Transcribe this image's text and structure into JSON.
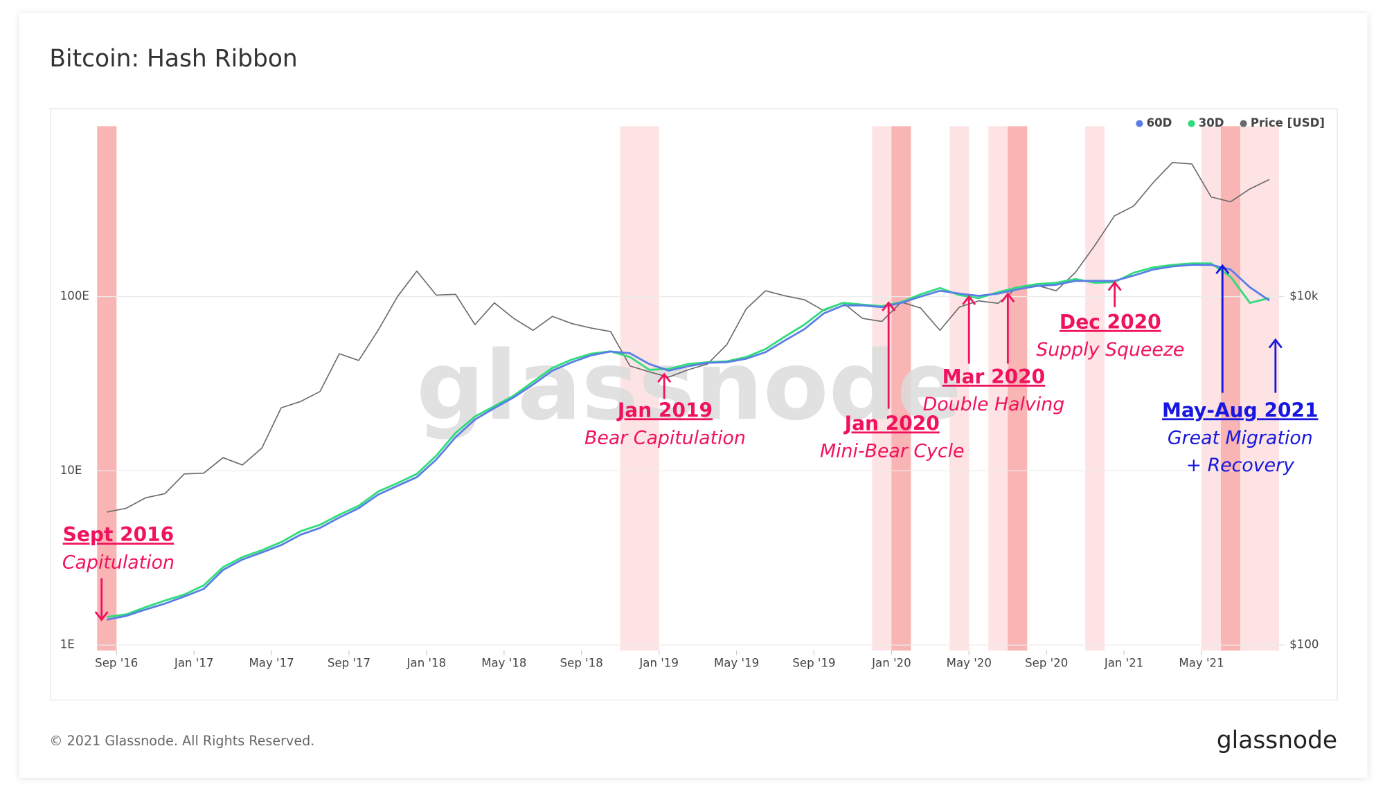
{
  "title_block": {
    "copyright": "© 2021 Glassnode. All Rights Reserved.",
    "logo": "glassnode",
    "watermark": "glassnode"
  },
  "chart_data": {
    "type": "line",
    "title": "Bitcoin: Hash Ribbon",
    "x": [
      "2016-08",
      "2016-09",
      "2016-10",
      "2016-11",
      "2016-12",
      "2017-01",
      "2017-02",
      "2017-03",
      "2017-04",
      "2017-05",
      "2017-06",
      "2017-07",
      "2017-08",
      "2017-09",
      "2017-10",
      "2017-11",
      "2017-12",
      "2018-01",
      "2018-02",
      "2018-03",
      "2018-04",
      "2018-05",
      "2018-06",
      "2018-07",
      "2018-08",
      "2018-09",
      "2018-10",
      "2018-11",
      "2018-12",
      "2019-01",
      "2019-02",
      "2019-03",
      "2019-04",
      "2019-05",
      "2019-06",
      "2019-07",
      "2019-08",
      "2019-09",
      "2019-10",
      "2019-11",
      "2019-12",
      "2020-01",
      "2020-02",
      "2020-03",
      "2020-04",
      "2020-05",
      "2020-06",
      "2020-07",
      "2020-08",
      "2020-09",
      "2020-10",
      "2020-11",
      "2020-12",
      "2021-01",
      "2021-02",
      "2021-03",
      "2021-04",
      "2021-05",
      "2021-06",
      "2021-07",
      "2021-08"
    ],
    "xlim": [
      "2016-08",
      "2021-08"
    ],
    "xticks": [
      {
        "value": "2016-09",
        "label": "Sep '16"
      },
      {
        "value": "2017-01",
        "label": "Jan '17"
      },
      {
        "value": "2017-05",
        "label": "May '17"
      },
      {
        "value": "2017-09",
        "label": "Sep '17"
      },
      {
        "value": "2018-01",
        "label": "Jan '18"
      },
      {
        "value": "2018-05",
        "label": "May '18"
      },
      {
        "value": "2018-09",
        "label": "Sep '18"
      },
      {
        "value": "2019-01",
        "label": "Jan '19"
      },
      {
        "value": "2019-05",
        "label": "May '19"
      },
      {
        "value": "2019-09",
        "label": "Sep '19"
      },
      {
        "value": "2020-01",
        "label": "Jan '20"
      },
      {
        "value": "2020-05",
        "label": "May '20"
      },
      {
        "value": "2020-09",
        "label": "Sep '20"
      },
      {
        "value": "2021-01",
        "label": "Jan '21"
      },
      {
        "value": "2021-05",
        "label": "May '21"
      }
    ],
    "ylog": true,
    "ylim": [
      0.93,
      950
    ],
    "yticks": [
      {
        "value": 1,
        "label": "1E"
      },
      {
        "value": 10,
        "label": "10E"
      },
      {
        "value": 100,
        "label": "100E"
      }
    ],
    "y2log": true,
    "y2lim": [
      93,
      95000
    ],
    "y2ticks": [
      {
        "value": 100,
        "label": "$100"
      },
      {
        "value": 10000,
        "label": "$10k"
      }
    ],
    "grid": true,
    "legend": "top-right",
    "series": [
      {
        "name": "60D",
        "color": "#5a7ee6",
        "values": [
          1.4,
          1.47,
          1.6,
          1.73,
          1.9,
          2.1,
          2.7,
          3.1,
          3.4,
          3.75,
          4.3,
          4.7,
          5.4,
          6.1,
          7.3,
          8.2,
          9.2,
          11.6,
          15.6,
          19.7,
          22.9,
          26.4,
          31.3,
          37.6,
          42,
          46,
          48.4,
          47.3,
          41,
          37.6,
          39.8,
          41.7,
          42,
          44,
          48,
          56,
          65,
          80,
          89,
          89,
          87,
          92,
          100,
          108,
          104,
          101,
          104,
          110,
          115,
          117,
          123,
          123,
          123,
          132,
          143,
          149,
          152,
          152,
          143,
          113,
          95
        ]
      },
      {
        "name": "30D",
        "color": "#2fdc7a",
        "values": [
          1.45,
          1.5,
          1.65,
          1.8,
          1.95,
          2.2,
          2.8,
          3.2,
          3.5,
          3.9,
          4.5,
          4.9,
          5.6,
          6.3,
          7.6,
          8.5,
          9.6,
          12.2,
          16.5,
          20.5,
          23.5,
          27,
          32.5,
          39,
          43.5,
          47,
          48.5,
          45,
          38,
          38.5,
          41,
          42,
          42.5,
          45,
          50,
          59,
          69,
          84,
          92,
          90,
          88,
          93,
          103,
          112,
          102,
          98,
          106,
          113,
          118,
          120,
          126,
          120,
          121,
          137,
          147,
          152,
          155,
          155,
          130,
          92,
          98
        ]
      },
      {
        "name": "Price [USD]",
        "color": "#6b6b6b",
        "axis": "y2",
        "values": [
          580,
          610,
          700,
          740,
          960,
          970,
          1190,
          1080,
          1350,
          2300,
          2500,
          2850,
          4700,
          4300,
          6400,
          10000,
          14000,
          10200,
          10300,
          6900,
          9200,
          7500,
          6400,
          7700,
          7000,
          6600,
          6300,
          4000,
          3700,
          3450,
          3800,
          4100,
          5300,
          8500,
          10800,
          10100,
          9600,
          8300,
          9200,
          7500,
          7200,
          9300,
          8600,
          6400,
          8700,
          9450,
          9150,
          11300,
          11600,
          10800,
          13800,
          19700,
          29000,
          33100,
          45000,
          58800,
          57700,
          37300,
          35000,
          41500,
          47000
        ]
      }
    ],
    "bands": [
      [
        "2016-08",
        "2016-08"
      ],
      [
        "2018-11",
        "2018-12"
      ],
      [
        "2019-12",
        "2020-01"
      ],
      [
        "2020-04",
        "2020-04"
      ],
      [
        "2020-06",
        "2020-07"
      ],
      [
        "2020-11",
        "2020-11"
      ],
      [
        "2021-05",
        "2021-08"
      ]
    ],
    "band_color": "#fde3e3",
    "strong_bands": [
      [
        "2016-08",
        "2016-08"
      ],
      [
        "2020-01",
        "2020-01"
      ],
      [
        "2020-07",
        "2020-07"
      ],
      [
        "2021-06",
        "2021-06"
      ]
    ],
    "strong_band_color": "#f9b4b4",
    "annotations": [
      {
        "title": "Sept 2016",
        "lines": [
          "Capitulation"
        ],
        "color": "#f0125e"
      },
      {
        "title": "Jan 2019",
        "lines": [
          "Bear Capitulation"
        ],
        "color": "#f0125e"
      },
      {
        "title": "Jan 2020",
        "lines": [
          "Mini-Bear Cycle"
        ],
        "color": "#f0125e"
      },
      {
        "title": "Mar 2020",
        "lines": [
          "Double Halving"
        ],
        "color": "#f0125e"
      },
      {
        "title": "Dec 2020",
        "lines": [
          "Supply Squeeze"
        ],
        "color": "#f0125e"
      },
      {
        "title": "May-Aug 2021",
        "lines": [
          "Great Migration",
          "+ Recovery"
        ],
        "color": "#1717df"
      }
    ]
  }
}
